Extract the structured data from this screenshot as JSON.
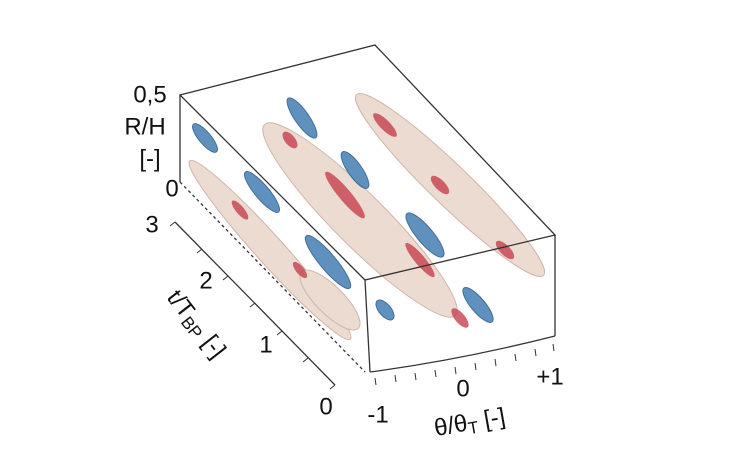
{
  "axes": {
    "vertical": {
      "label": "R/H",
      "unit": "[-]",
      "ticks": [
        "0,5",
        "0"
      ]
    },
    "depth": {
      "label": "t/T",
      "label_sub": "BP",
      "unit": "[-]",
      "ticks": [
        "3",
        "2",
        "1",
        "0"
      ]
    },
    "horizontal": {
      "label": "θ/θ",
      "label_sub": "T",
      "unit": "[-]",
      "ticks": [
        "-1",
        "0",
        "+1"
      ]
    }
  }
}
